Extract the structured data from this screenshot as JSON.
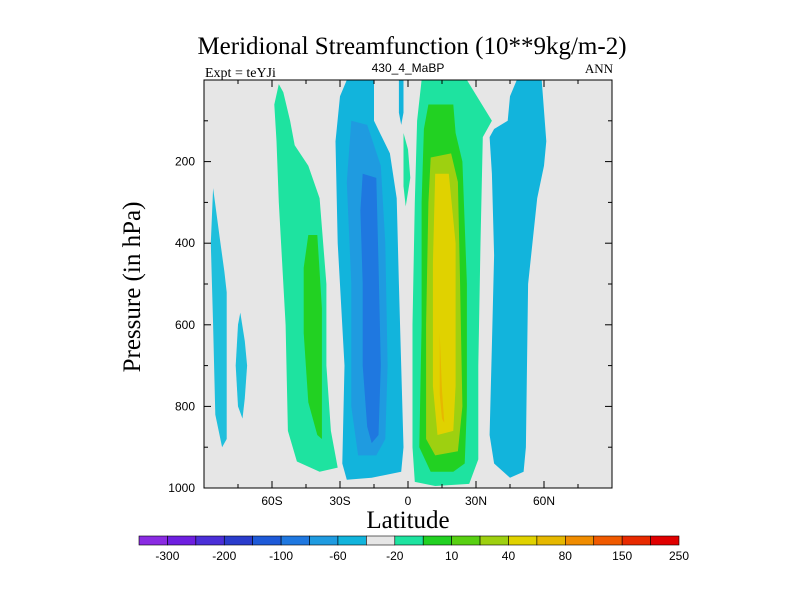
{
  "chart_data": {
    "type": "contour",
    "title": "Meridional Streamfunction (10**9kg/m-2)",
    "subtitle_left": "Expt = teYJi",
    "subtitle_center": "430_4_MaBP",
    "subtitle_right": "ANN",
    "xlabel": "Latitude",
    "ylabel": "Pressure (in hPa)",
    "xlim": [
      -90,
      90
    ],
    "ylim": [
      1000,
      0
    ],
    "x_ticks": [
      {
        "value": -60,
        "label": "60S"
      },
      {
        "value": -30,
        "label": "30S"
      },
      {
        "value": 0,
        "label": "0"
      },
      {
        "value": 30,
        "label": "30N"
      },
      {
        "value": 60,
        "label": "60N"
      }
    ],
    "y_ticks": [
      {
        "value": 200,
        "label": "200"
      },
      {
        "value": 400,
        "label": "400"
      },
      {
        "value": 600,
        "label": "600"
      },
      {
        "value": 800,
        "label": "800"
      },
      {
        "value": 1000,
        "label": "1000"
      }
    ],
    "background_level_color": "#e6e6e6",
    "colorbar": {
      "colors": [
        "#8a2be2",
        "#6e1fe0",
        "#4b2fd8",
        "#2a3ccc",
        "#1e5ad8",
        "#1f78e0",
        "#1f9be0",
        "#12b4dc",
        "#e6e6e6",
        "#1ee3a0",
        "#22d122",
        "#58d012",
        "#9ed010",
        "#e0d200",
        "#e6b800",
        "#f08c00",
        "#f05a00",
        "#e82a00",
        "#e00000"
      ],
      "labels": [
        "-300",
        "-200",
        "-100",
        "-60",
        "-20",
        "10",
        "40",
        "80",
        "150",
        "250"
      ]
    },
    "regions": [
      {
        "color": "#1fbfdc",
        "points": [
          [
            -86,
            265
          ],
          [
            -83,
            390
          ],
          [
            -81,
            470
          ],
          [
            -80,
            520
          ],
          [
            -80,
            740
          ],
          [
            -80,
            880
          ],
          [
            -82,
            900
          ],
          [
            -85,
            820
          ],
          [
            -86,
            600
          ],
          [
            -87,
            400
          ]
        ]
      },
      {
        "color": "#1fbfdc",
        "points": [
          [
            -74,
            570
          ],
          [
            -72,
            640
          ],
          [
            -71,
            700
          ],
          [
            -72,
            780
          ],
          [
            -73,
            830
          ],
          [
            -75,
            800
          ],
          [
            -76,
            700
          ],
          [
            -75,
            600
          ]
        ]
      },
      {
        "color": "#1ee3a0",
        "points": [
          [
            -57,
            10
          ],
          [
            -55,
            30
          ],
          [
            -52,
            100
          ],
          [
            -50,
            160
          ],
          [
            -44,
            210
          ],
          [
            -39,
            290
          ],
          [
            -36,
            500
          ],
          [
            -36,
            700
          ],
          [
            -34,
            860
          ],
          [
            -31,
            950
          ],
          [
            -39,
            960
          ],
          [
            -49,
            935
          ],
          [
            -53,
            860
          ],
          [
            -54,
            600
          ],
          [
            -57,
            300
          ],
          [
            -58,
            150
          ],
          [
            -59,
            60
          ]
        ]
      },
      {
        "color": "#22d122",
        "points": [
          [
            -44,
            380
          ],
          [
            -40,
            380
          ],
          [
            -38,
            560
          ],
          [
            -38,
            880
          ],
          [
            -40,
            870
          ],
          [
            -44,
            790
          ],
          [
            -46,
            620
          ],
          [
            -46,
            460
          ]
        ]
      },
      {
        "color": "#12b4dc",
        "points": [
          [
            -27,
            0
          ],
          [
            -15,
            0
          ],
          [
            -15,
            100
          ],
          [
            -8,
            180
          ],
          [
            -5,
            290
          ],
          [
            -4,
            500
          ],
          [
            -3,
            700
          ],
          [
            -2,
            900
          ],
          [
            -3,
            960
          ],
          [
            -16,
            975
          ],
          [
            -27,
            980
          ],
          [
            -29,
            940
          ],
          [
            -28,
            700
          ],
          [
            -31,
            400
          ],
          [
            -32,
            150
          ],
          [
            -30,
            40
          ]
        ]
      },
      {
        "color": "#1f9be0",
        "points": [
          [
            -25,
            100
          ],
          [
            -18,
            110
          ],
          [
            -12,
            210
          ],
          [
            -10,
            400
          ],
          [
            -9,
            700
          ],
          [
            -10,
            880
          ],
          [
            -14,
            920
          ],
          [
            -22,
            920
          ],
          [
            -25,
            800
          ],
          [
            -25,
            500
          ],
          [
            -27,
            250
          ]
        ]
      },
      {
        "color": "#1f78e0",
        "points": [
          [
            -20,
            230
          ],
          [
            -14,
            240
          ],
          [
            -13,
            450
          ],
          [
            -12,
            700
          ],
          [
            -13,
            870
          ],
          [
            -16,
            890
          ],
          [
            -18,
            850
          ],
          [
            -20,
            700
          ],
          [
            -20,
            500
          ],
          [
            -21,
            320
          ]
        ]
      },
      {
        "color": "#12b4dc",
        "points": [
          [
            -4,
            0
          ],
          [
            -2,
            0
          ],
          [
            -2,
            80
          ],
          [
            -3,
            110
          ],
          [
            -4,
            80
          ]
        ]
      },
      {
        "color": "#1ee3a0",
        "points": [
          [
            -2,
            130
          ],
          [
            0,
            170
          ],
          [
            1,
            240
          ],
          [
            -1,
            310
          ],
          [
            -2,
            260
          ]
        ]
      },
      {
        "color": "#1ee3a0",
        "points": [
          [
            6,
            0
          ],
          [
            26,
            0
          ],
          [
            37,
            100
          ],
          [
            33,
            140
          ],
          [
            32,
            400
          ],
          [
            31,
            700
          ],
          [
            31,
            930
          ],
          [
            27,
            990
          ],
          [
            12,
            995
          ],
          [
            3,
            985
          ],
          [
            2,
            900
          ],
          [
            2,
            600
          ],
          [
            3,
            300
          ],
          [
            4,
            100
          ]
        ]
      },
      {
        "color": "#22d122",
        "points": [
          [
            9,
            60
          ],
          [
            20,
            60
          ],
          [
            21,
            130
          ],
          [
            24,
            200
          ],
          [
            26,
            500
          ],
          [
            26,
            800
          ],
          [
            25,
            940
          ],
          [
            20,
            960
          ],
          [
            10,
            960
          ],
          [
            5,
            900
          ],
          [
            6,
            600
          ],
          [
            6,
            300
          ],
          [
            7,
            120
          ]
        ]
      },
      {
        "color": "#9ed010",
        "points": [
          [
            10,
            190
          ],
          [
            19,
            180
          ],
          [
            22,
            250
          ],
          [
            23,
            500
          ],
          [
            24,
            800
          ],
          [
            22,
            910
          ],
          [
            12,
            920
          ],
          [
            8,
            880
          ],
          [
            8,
            600
          ],
          [
            9,
            300
          ]
        ]
      },
      {
        "color": "#e0d200",
        "points": [
          [
            12,
            230
          ],
          [
            18,
            230
          ],
          [
            21,
            400
          ],
          [
            21,
            750
          ],
          [
            20,
            860
          ],
          [
            13,
            870
          ],
          [
            11,
            750
          ],
          [
            11,
            450
          ]
        ]
      },
      {
        "color": "#e6b800",
        "points": [
          [
            14,
            620
          ],
          [
            15,
            760
          ],
          [
            16,
            840
          ],
          [
            15,
            830
          ],
          [
            14,
            770
          ]
        ]
      },
      {
        "color": "#12b4dc",
        "points": [
          [
            36,
            140
          ],
          [
            37,
            230
          ],
          [
            38,
            430
          ],
          [
            37,
            650
          ],
          [
            36,
            870
          ],
          [
            38,
            940
          ],
          [
            45,
            975
          ],
          [
            51,
            960
          ],
          [
            52,
            900
          ],
          [
            53,
            500
          ],
          [
            57,
            290
          ],
          [
            60,
            210
          ],
          [
            61,
            150
          ],
          [
            59,
            0
          ],
          [
            48,
            0
          ],
          [
            45,
            40
          ],
          [
            44,
            100
          ],
          [
            38,
            120
          ]
        ]
      }
    ]
  }
}
